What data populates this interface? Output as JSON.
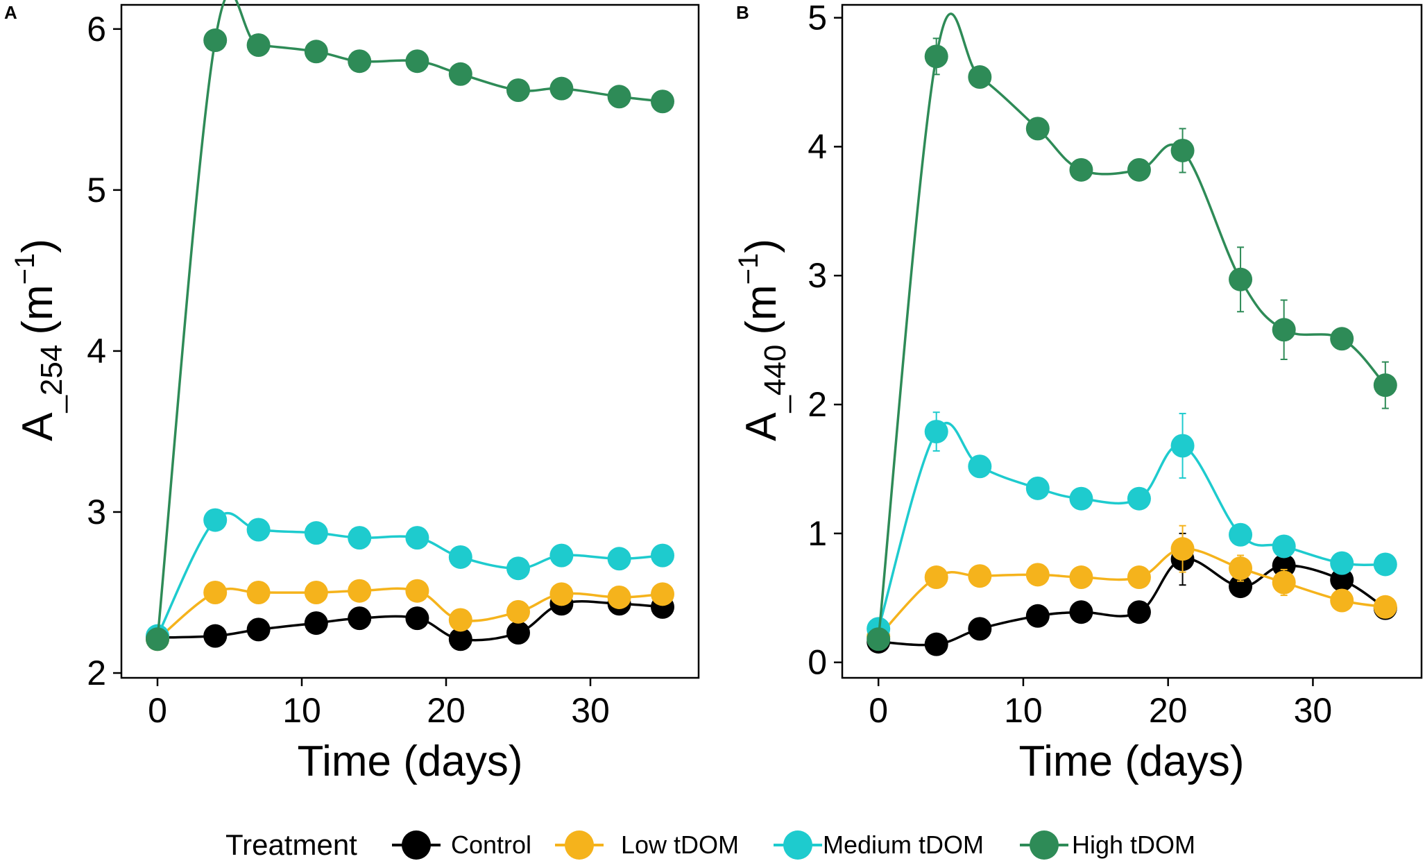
{
  "chart_data": [
    {
      "type": "line",
      "panel": "A",
      "xlabel": "Time (days)",
      "ylabel_main": "A",
      "ylabel_sub": "_254",
      "ylabel_unit_open": "(m",
      "ylabel_unit_sup": "−1",
      "ylabel_unit_close": ")",
      "xlim": [
        -2.5,
        37.5
      ],
      "ylim": [
        1.97,
        6.15
      ],
      "xticks": [
        0,
        10,
        20,
        30
      ],
      "xtick_labels": [
        "0",
        "10",
        "20",
        "30"
      ],
      "yticks": [
        2,
        3,
        4,
        5,
        6
      ],
      "ytick_labels": [
        "2",
        "3",
        "4",
        "5",
        "6"
      ],
      "x": [
        0,
        4,
        7,
        11,
        14,
        18,
        21,
        25,
        28,
        32,
        35
      ],
      "series": [
        {
          "name": "Control",
          "values": [
            2.22,
            2.23,
            2.27,
            2.31,
            2.34,
            2.34,
            2.21,
            2.25,
            2.43,
            2.43,
            2.41
          ],
          "errors": [
            0.01,
            0.01,
            0.01,
            0.01,
            0.01,
            0.01,
            0.06,
            0.01,
            0.03,
            0.02,
            0.01
          ]
        },
        {
          "name": "Low tDOM",
          "values": [
            2.21,
            2.5,
            2.5,
            2.5,
            2.51,
            2.51,
            2.33,
            2.38,
            2.49,
            2.47,
            2.49
          ],
          "errors": [
            0.01,
            0.01,
            0.01,
            0.01,
            0.01,
            0.01,
            0.02,
            0.01,
            0.01,
            0.01,
            0.01
          ]
        },
        {
          "name": "Medium tDOM",
          "values": [
            2.23,
            2.95,
            2.89,
            2.87,
            2.84,
            2.84,
            2.72,
            2.65,
            2.73,
            2.71,
            2.73
          ],
          "errors": [
            0.01,
            0.01,
            0.01,
            0.01,
            0.01,
            0.01,
            0.01,
            0.01,
            0.01,
            0.01,
            0.01
          ]
        },
        {
          "name": "High tDOM",
          "values": [
            2.21,
            5.93,
            5.9,
            5.86,
            5.8,
            5.8,
            5.72,
            5.62,
            5.63,
            5.58,
            5.55
          ],
          "errors": [
            0.01,
            0.01,
            0.01,
            0.01,
            0.01,
            0.01,
            0.01,
            0.01,
            0.01,
            0.01,
            0.01
          ]
        }
      ]
    },
    {
      "type": "line",
      "panel": "B",
      "xlabel": "Time (days)",
      "ylabel_main": "A",
      "ylabel_sub": "_440",
      "ylabel_unit_open": "(m",
      "ylabel_unit_sup": "−1",
      "ylabel_unit_close": ")",
      "xlim": [
        -2.5,
        37.5
      ],
      "ylim": [
        -0.12,
        5.1
      ],
      "xticks": [
        0,
        10,
        20,
        30
      ],
      "xtick_labels": [
        "0",
        "10",
        "20",
        "30"
      ],
      "yticks": [
        0,
        1,
        2,
        3,
        4,
        5
      ],
      "ytick_labels": [
        "0",
        "1",
        "2",
        "3",
        "4",
        "5"
      ],
      "x": [
        0,
        4,
        7,
        11,
        14,
        18,
        21,
        25,
        28,
        32,
        35
      ],
      "series": [
        {
          "name": "Control",
          "values": [
            0.16,
            0.14,
            0.26,
            0.36,
            0.39,
            0.39,
            0.8,
            0.59,
            0.75,
            0.64,
            0.42
          ],
          "errors": [
            0.01,
            0.01,
            0.01,
            0.01,
            0.01,
            0.01,
            0.2,
            0.03,
            0.2,
            0.14,
            0.03
          ]
        },
        {
          "name": "Low tDOM",
          "values": [
            0.2,
            0.66,
            0.67,
            0.68,
            0.66,
            0.66,
            0.88,
            0.73,
            0.62,
            0.48,
            0.43
          ],
          "errors": [
            0.01,
            0.01,
            0.01,
            0.01,
            0.01,
            0.01,
            0.18,
            0.1,
            0.1,
            0.04,
            0.03
          ]
        },
        {
          "name": "Medium tDOM",
          "values": [
            0.26,
            1.79,
            1.52,
            1.35,
            1.27,
            1.27,
            1.68,
            0.99,
            0.9,
            0.77,
            0.76
          ],
          "errors": [
            0.01,
            0.15,
            0.01,
            0.01,
            0.01,
            0.01,
            0.25,
            0.01,
            0.01,
            0.01,
            0.01
          ]
        },
        {
          "name": "High tDOM",
          "values": [
            0.18,
            4.7,
            4.54,
            4.14,
            3.82,
            3.82,
            3.97,
            2.97,
            2.58,
            2.51,
            2.15
          ],
          "errors": [
            0.01,
            0.14,
            0.01,
            0.01,
            0.01,
            0.01,
            0.17,
            0.25,
            0.23,
            0.01,
            0.18
          ]
        }
      ]
    }
  ],
  "legend": {
    "title": "Treatment",
    "placement": "bottom-center",
    "items": [
      {
        "label": "Control",
        "color": "#000000"
      },
      {
        "label": "Low tDOM",
        "color": "#F5B31C"
      },
      {
        "label": "Medium tDOM",
        "color": "#1ECBCE"
      },
      {
        "label": "High tDOM",
        "color": "#2E8B57"
      }
    ]
  },
  "colors": {
    "Control": "#000000",
    "Low tDOM": "#F5B31C",
    "Medium tDOM": "#1ECBCE",
    "High tDOM": "#2E8B57"
  }
}
